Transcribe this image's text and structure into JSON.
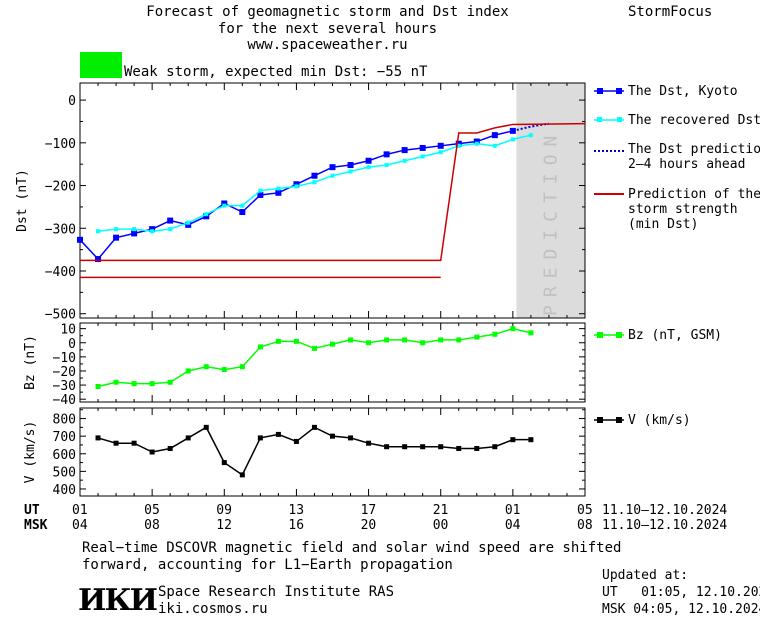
{
  "header": {
    "title_line1": "Forecast of geomagnetic storm and Dst index",
    "title_line2": "for the next several hours",
    "website": "www.spaceweather.ru",
    "brand": "StormFocus"
  },
  "status": {
    "swatch_color": "#00ee00",
    "text": "Weak storm, expected min Dst: −55 nT"
  },
  "colors": {
    "dst_kyoto": "#0000ff",
    "dst_recovered": "#00ffff",
    "prediction_dotted": "#0000cc",
    "storm_strength": "#cc0000",
    "bz": "#00ff00",
    "v": "#000000",
    "prediction_band": "#dcdcdc"
  },
  "prediction_label": "PREDICTION",
  "legend": {
    "dst_kyoto": "The Dst, Kyoto",
    "dst_recovered": "The recovered Dst",
    "dst_prediction_l1": "The Dst prediction",
    "dst_prediction_l2": "2–4 hours ahead",
    "storm_l1": "Prediction of the",
    "storm_l2": "storm strength",
    "storm_l3": "(min Dst)",
    "bz": "Bz (nT, GSM)",
    "v": "V (km/s)"
  },
  "axes": {
    "ut_label": "UT",
    "msk_label": "MSK",
    "ut_ticks": [
      "01",
      "05",
      "09",
      "13",
      "17",
      "21",
      "01",
      "05"
    ],
    "msk_ticks": [
      "04",
      "08",
      "12",
      "16",
      "20",
      "00",
      "04",
      "08"
    ],
    "date_range_ut": "11.10–12.10.2024",
    "date_range_msk": "11.10–12.10.2024"
  },
  "chart_data": [
    {
      "type": "line",
      "ylabel": "Dst (nT)",
      "ylim": [
        -510,
        40
      ],
      "yticks": [
        0,
        -100,
        -200,
        -300,
        -400,
        -500
      ],
      "xlim": [
        0,
        28
      ],
      "prediction_start": 24.2,
      "series": [
        {
          "name": "The Dst, Kyoto",
          "x": [
            0,
            1,
            2,
            3,
            4,
            5,
            6,
            7,
            8,
            9,
            10,
            11,
            12,
            13,
            14,
            15,
            16,
            17,
            18,
            19,
            20,
            21,
            22,
            23,
            24
          ],
          "y": [
            -327,
            -372,
            -322,
            -312,
            -302,
            -282,
            -292,
            -272,
            -242,
            -262,
            -222,
            -217,
            -197,
            -177,
            -157,
            -152,
            -142,
            -127,
            -117,
            -112,
            -107,
            -102,
            -97,
            -82,
            -72
          ]
        },
        {
          "name": "The recovered Dst",
          "x": [
            1,
            2,
            3,
            4,
            5,
            6,
            7,
            8,
            9,
            10,
            11,
            12,
            13,
            14,
            15,
            16,
            17,
            18,
            19,
            20,
            21,
            22,
            23,
            24,
            25
          ],
          "y": [
            -307,
            -302,
            -302,
            -307,
            -302,
            -287,
            -267,
            -247,
            -247,
            -212,
            -207,
            -202,
            -192,
            -177,
            -167,
            -157,
            -152,
            -142,
            -132,
            -122,
            -107,
            -102,
            -107,
            -92,
            -82
          ]
        },
        {
          "name": "The Dst prediction 2–4 hours ahead",
          "x": [
            24,
            25,
            26
          ],
          "y": [
            -72,
            -62,
            -55
          ]
        },
        {
          "name": "Prediction of the storm strength (min Dst)",
          "x": [
            0,
            20,
            21,
            22,
            23,
            24,
            28
          ],
          "y": [
            -375,
            -375,
            -77,
            -77,
            -65,
            -57,
            -55
          ]
        },
        {
          "name": "",
          "x": [
            0,
            20
          ],
          "y": [
            -415,
            -415
          ]
        }
      ]
    },
    {
      "type": "line",
      "ylabel": "Bz (nT)",
      "ylim": [
        -42,
        14
      ],
      "yticks": [
        10,
        0,
        -10,
        -20,
        -30,
        -40
      ],
      "xlim": [
        0,
        28
      ],
      "series": [
        {
          "name": "Bz (nT, GSM)",
          "x": [
            1,
            2,
            3,
            4,
            5,
            6,
            7,
            8,
            9,
            10,
            11,
            12,
            13,
            14,
            15,
            16,
            17,
            18,
            19,
            20,
            21,
            22,
            23,
            24,
            25
          ],
          "y": [
            -31,
            -28,
            -29,
            -29,
            -28,
            -20,
            -17,
            -19,
            -17,
            -3,
            1,
            1,
            -4,
            -1,
            2,
            0,
            2,
            2,
            0,
            2,
            2,
            4,
            6,
            10,
            7
          ]
        }
      ]
    },
    {
      "type": "line",
      "ylabel": "V (km/s)",
      "ylim": [
        360,
        860
      ],
      "yticks": [
        800,
        700,
        600,
        500,
        400
      ],
      "xlim": [
        0,
        28
      ],
      "series": [
        {
          "name": "V (km/s)",
          "x": [
            1,
            2,
            3,
            4,
            5,
            6,
            7,
            8,
            9,
            10,
            11,
            12,
            13,
            14,
            15,
            16,
            17,
            18,
            19,
            20,
            21,
            22,
            23,
            24,
            25
          ],
          "y": [
            690,
            660,
            660,
            610,
            630,
            690,
            750,
            550,
            480,
            690,
            710,
            670,
            750,
            700,
            690,
            660,
            640,
            640,
            640,
            640,
            630,
            630,
            640,
            680,
            680
          ]
        }
      ]
    }
  ],
  "footer": {
    "note_l1": "Real−time DSCOVR magnetic field and solar wind speed are shifted",
    "note_l2": "forward, accounting for L1−Earth propagation",
    "logo": "ИКИ",
    "institute": "Space Research Institute RAS",
    "site": "iki.cosmos.ru",
    "updated_label": "Updated at:",
    "updated_ut": "UT   01:05, 12.10.2024",
    "updated_msk": "MSK 04:05, 12.10.2024"
  }
}
